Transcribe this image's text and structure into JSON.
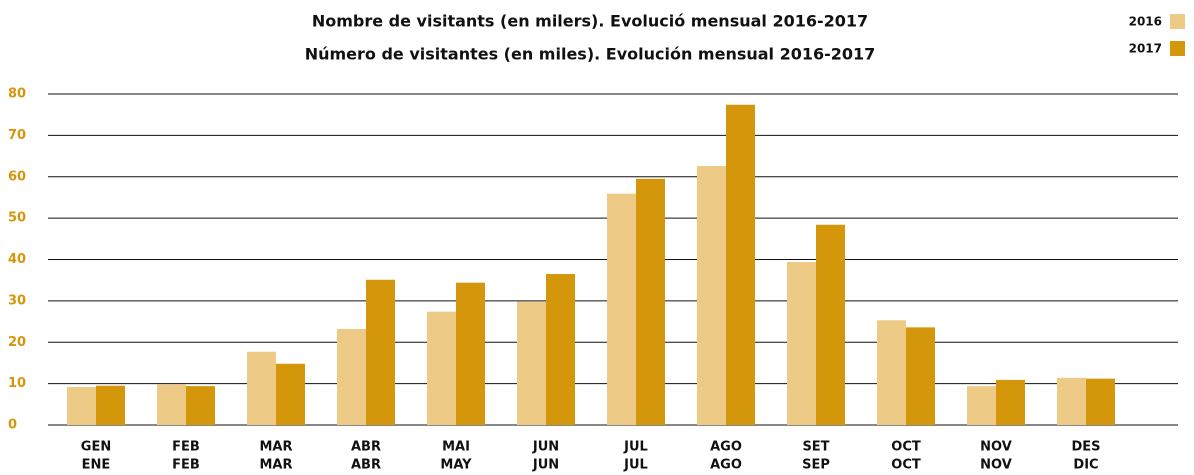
{
  "chart_data": {
    "type": "bar",
    "title": [
      "Nombre de visitants (en milers). Evolució mensual 2016-2017",
      "Número de visitantes (en miles). Evolución mensual 2016-2017"
    ],
    "categories": [
      [
        "GEN",
        "ENE"
      ],
      [
        "FEB",
        "FEB"
      ],
      [
        "MAR",
        "MAR"
      ],
      [
        "ABR",
        "ABR"
      ],
      [
        "MAI",
        "MAY"
      ],
      [
        "JUN",
        "JUN"
      ],
      [
        "JUL",
        "JUL"
      ],
      [
        "AGO",
        "AGO"
      ],
      [
        "SET",
        "SEP"
      ],
      [
        "OCT",
        "OCT"
      ],
      [
        "NOV",
        "NOV"
      ],
      [
        "DES",
        "DIC"
      ]
    ],
    "series": [
      {
        "name": "2016",
        "color": "#edcb86",
        "values": [
          9.2,
          9.8,
          17.7,
          23.2,
          27.4,
          29.8,
          55.9,
          62.6,
          39.4,
          25.3,
          9.4,
          11.4
        ]
      },
      {
        "name": "2017",
        "color": "#d4960a",
        "values": [
          9.5,
          9.4,
          14.8,
          35.1,
          34.4,
          36.5,
          59.5,
          77.4,
          48.4,
          23.6,
          10.9,
          11.2
        ]
      }
    ],
    "ylim": [
      0,
      80
    ],
    "yticks": [
      0,
      10,
      20,
      30,
      40,
      50,
      60,
      70,
      80
    ],
    "grid": true,
    "legend": "top-right"
  }
}
